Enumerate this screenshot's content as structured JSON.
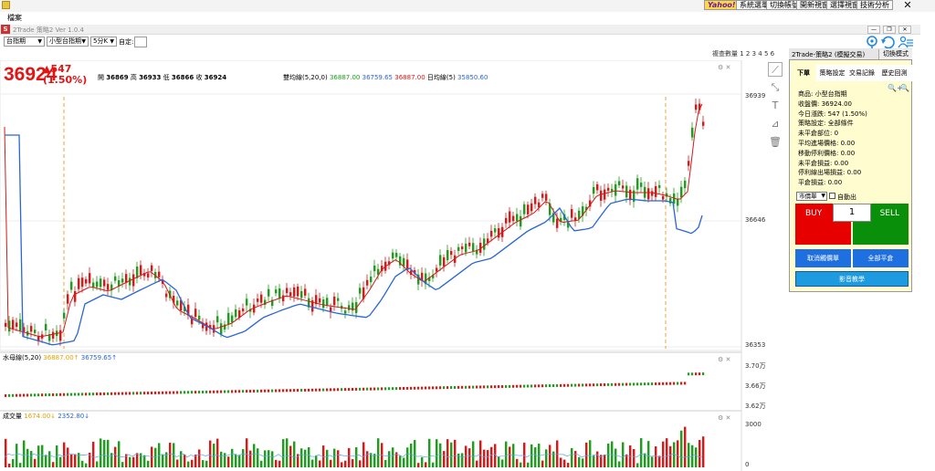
{
  "app": {
    "title": "2Trade 策略2 Ver 1.0.4",
    "menu_file": "檔案",
    "top_buttons": [
      "Yahoo!",
      "系統選單",
      "切換帳號",
      "開新視窗",
      "選擇視窗",
      "技術分析"
    ],
    "close": "✕",
    "window_buttons": [
      "—",
      "❐",
      "✕"
    ]
  },
  "toolbar": {
    "product": "台指期",
    "contract": "小型台指期",
    "interval": "5分K",
    "custom_label": "自定:"
  },
  "main_chart": {
    "last_price": "36924",
    "change": "▲547",
    "change_pct": "(1.50%)",
    "open_label": "開",
    "open": "36869",
    "high_label": "高",
    "high": "36933",
    "low_label": "低",
    "low": "36866",
    "close_label": "收",
    "close": "36924",
    "ma_label": "雙均線(5,20,0)",
    "ma1": "36887.00",
    "ma2": "36759.65",
    "ma3": "36887.00",
    "day_ma_label": "日均線(5)",
    "day_ma": "35850.60",
    "y_ticks": [
      "36939",
      "36646",
      "36353"
    ],
    "quantity_label": "複查數量 1 2 3 4 5 6"
  },
  "indicator": {
    "label": "水母線(5,20)",
    "v1": "36887.00↑",
    "v2": "36759.65↑",
    "y_ticks": [
      "3.70万",
      "3.66万",
      "3.62万"
    ]
  },
  "volume": {
    "label": "成交量",
    "v1": "1674.00↓",
    "v2": "2352.80↓",
    "y_ticks": [
      "3000",
      "0"
    ]
  },
  "side_panel": {
    "title": "2Trade-策略2 (模擬交易)",
    "switch_mode": "切換模式",
    "tabs": [
      "下單",
      "策略設定",
      "交易記錄",
      "歷史回測"
    ],
    "info": [
      "商品: 小型台指期",
      "收盤價: 36924.00",
      "今日漲跌: 547 (1.50%)",
      "策略設定: 全部條件",
      "未平倉部位: 0",
      "平均進場價格: 0.00",
      "移動停利價格: 0.00",
      "未平倉損益: 0.00",
      "停利線出場損益: 0.00",
      "平倉損益: 0.00"
    ],
    "order_type": "市價單",
    "auto_exit": "自動出",
    "buy": "BUY",
    "sell": "SELL",
    "quantity": "1",
    "cancel_orders": "取消觸價單",
    "close_all": "全部平倉",
    "video": "影音教學"
  },
  "colors": {
    "up": "#e01515",
    "down": "#1aa01a",
    "ma_red": "#d11a1a",
    "ma_blue": "#2a66d6",
    "accent_blue": "#1e6fe0"
  }
}
